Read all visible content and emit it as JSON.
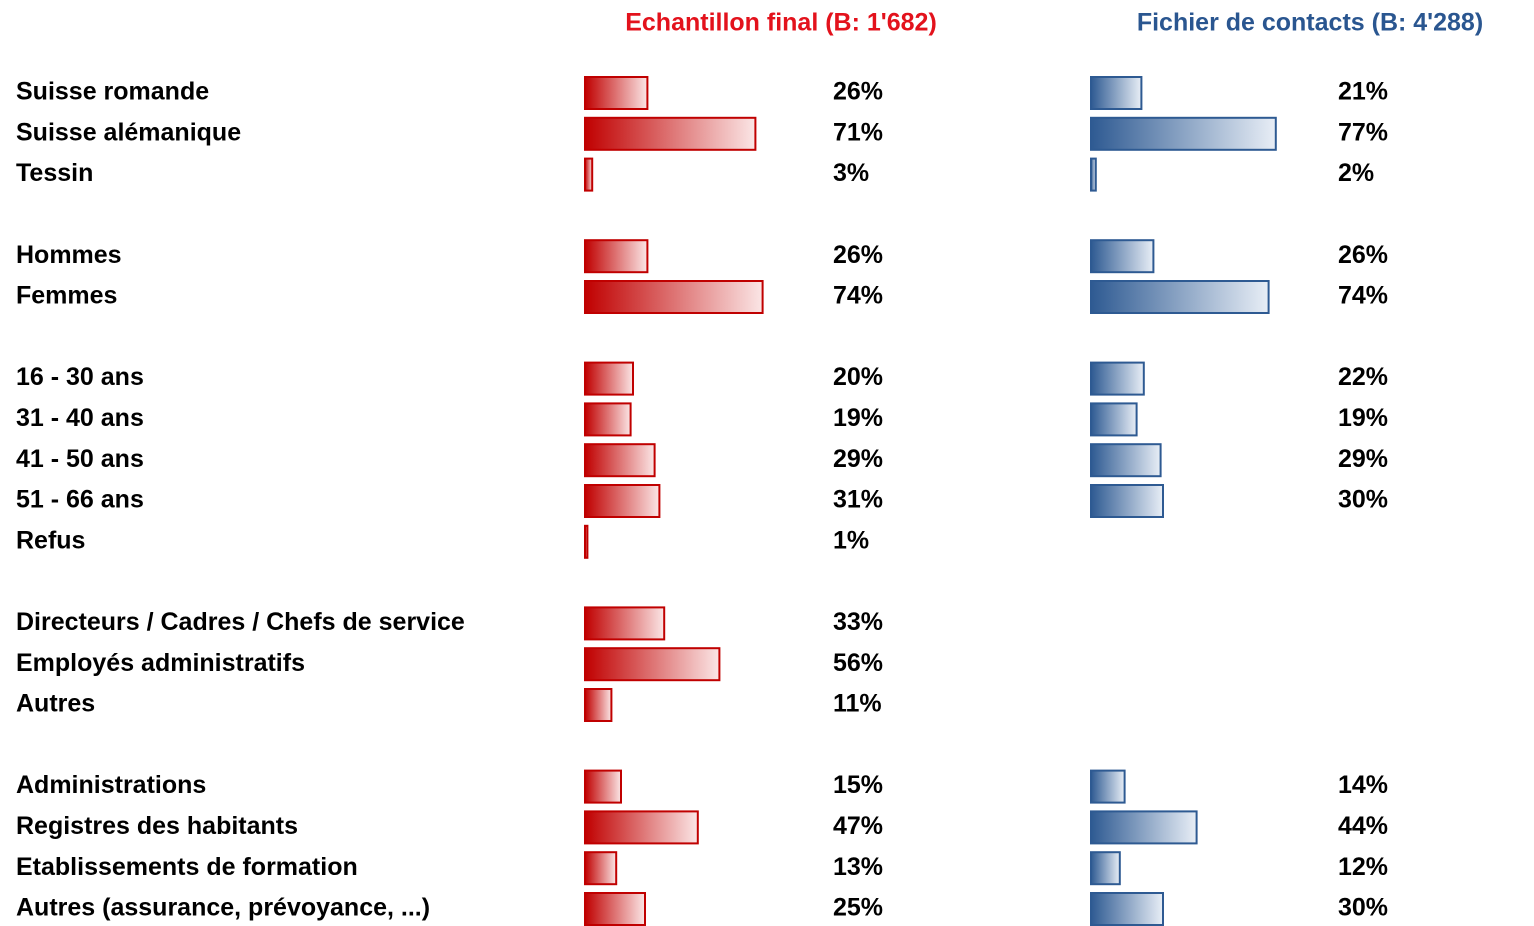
{
  "chart_data": {
    "type": "bar",
    "orientation": "horizontal",
    "series": [
      {
        "name": "Echantillon final (B: 1'682)",
        "color": "#c00000"
      },
      {
        "name": "Fichier de contacts (B: 4'288)",
        "color": "#2e5a92"
      }
    ],
    "groups": [
      {
        "categories": [
          "Suisse romande",
          "Suisse alémanique",
          "Tessin"
        ],
        "values": [
          [
            26,
            71,
            3
          ],
          [
            21,
            77,
            2
          ]
        ],
        "value_labels": [
          [
            "26%",
            "71%",
            "3%"
          ],
          [
            "21%",
            "77%",
            "2%"
          ]
        ]
      },
      {
        "categories": [
          "Hommes",
          "Femmes"
        ],
        "values": [
          [
            26,
            74
          ],
          [
            26,
            74
          ]
        ],
        "value_labels": [
          [
            "26%",
            "74%"
          ],
          [
            "26%",
            "74%"
          ]
        ]
      },
      {
        "categories": [
          "16 - 30 ans",
          "31 - 40 ans",
          "41 - 50 ans",
          "51 - 66 ans",
          "Refus"
        ],
        "values": [
          [
            20,
            19,
            29,
            31,
            1
          ],
          [
            22,
            19,
            29,
            30,
            null
          ]
        ],
        "value_labels": [
          [
            "20%",
            "19%",
            "29%",
            "31%",
            "1%"
          ],
          [
            "22%",
            "19%",
            "29%",
            "30%",
            null
          ]
        ]
      },
      {
        "categories": [
          "Directeurs / Cadres / Chefs de service",
          "Employés administratifs",
          "Autres"
        ],
        "values": [
          [
            33,
            56,
            11
          ],
          [
            null,
            null,
            null
          ]
        ],
        "value_labels": [
          [
            "33%",
            "56%",
            "11%"
          ],
          [
            null,
            null,
            null
          ]
        ]
      },
      {
        "categories": [
          "Administrations",
          "Registres des habitants",
          "Etablissements de formation",
          "Autres (assurance, prévoyance, ...)"
        ],
        "values": [
          [
            15,
            47,
            13,
            25
          ],
          [
            14,
            44,
            12,
            30
          ]
        ],
        "value_labels": [
          [
            "15%",
            "47%",
            "13%",
            "25%"
          ],
          [
            "14%",
            "44%",
            "12%",
            "30%"
          ]
        ]
      }
    ]
  }
}
